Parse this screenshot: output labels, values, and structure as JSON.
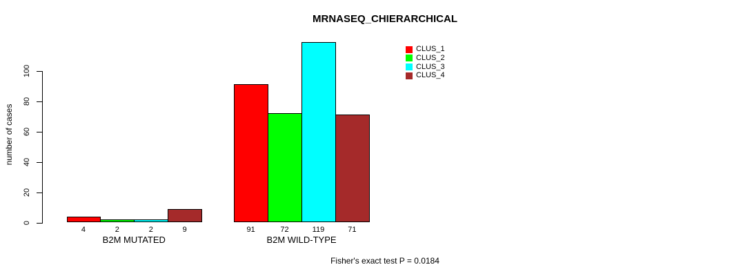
{
  "chart": {
    "title": "MRNASEQ_CHIERARCHICAL",
    "ylabel": "number of cases",
    "footer": "Fisher's exact test P = 0.0184"
  },
  "chart_data": {
    "type": "bar",
    "title": "MRNASEQ_CHIERARCHICAL",
    "xlabel": "",
    "ylabel": "number of cases",
    "ylim": [
      0,
      119
    ],
    "yticks": [
      0,
      20,
      40,
      60,
      80,
      100
    ],
    "grid": false,
    "legend_position": "top-right-outside",
    "categories": [
      "B2M MUTATED",
      "B2M WILD-TYPE"
    ],
    "series": [
      {
        "name": "CLUS_1",
        "color": "#ff0000",
        "values": [
          4,
          91
        ]
      },
      {
        "name": "CLUS_2",
        "color": "#00ff00",
        "values": [
          2,
          72
        ]
      },
      {
        "name": "CLUS_3",
        "color": "#00ffff",
        "values": [
          2,
          119
        ]
      },
      {
        "name": "CLUS_4",
        "color": "#a52a2a",
        "values": [
          9,
          71
        ]
      }
    ],
    "bar_value_labels": [
      [
        4,
        2,
        2,
        9
      ],
      [
        91,
        72,
        119,
        71
      ]
    ],
    "annotation": "Fisher's exact test P = 0.0184"
  }
}
